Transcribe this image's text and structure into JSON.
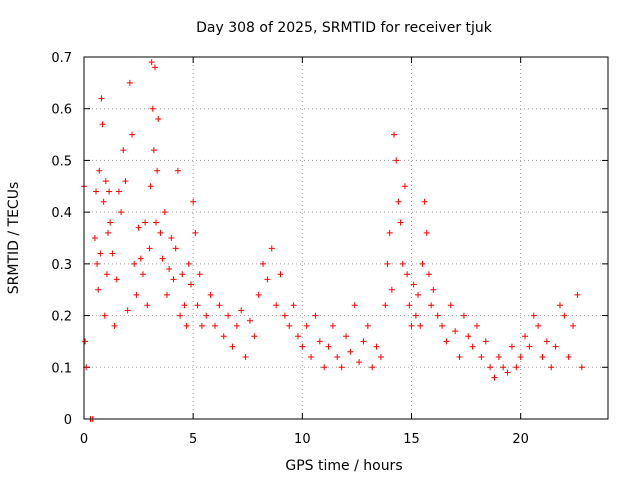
{
  "chart_data": {
    "type": "scatter",
    "title": "Day 308 of 2025, SRMTID for receiver tjuk",
    "xlabel": "GPS time / hours",
    "ylabel": "SRMTID / TECUs",
    "xlim": [
      0,
      24
    ],
    "ylim": [
      0,
      0.7
    ],
    "xticks": [
      0,
      5,
      10,
      15,
      20
    ],
    "xtick_labels": [
      "0",
      "5",
      "10",
      "15",
      "20"
    ],
    "yticks": [
      0,
      0.1,
      0.2,
      0.3,
      0.4,
      0.5,
      0.6,
      0.7
    ],
    "ytick_labels": [
      "0",
      "0.1",
      "0.2",
      "0.3",
      "0.4",
      "0.5",
      "0.6",
      "0.7"
    ],
    "grid": true,
    "marker": "plus",
    "color": "#ff0000",
    "series": [
      {
        "name": "SRMTID",
        "x": [
          0.0,
          0.05,
          0.1,
          0.3,
          0.4,
          0.5,
          0.55,
          0.6,
          0.65,
          0.7,
          0.75,
          0.8,
          0.85,
          0.9,
          0.95,
          1.0,
          1.05,
          1.1,
          1.15,
          1.2,
          1.3,
          1.4,
          1.5,
          1.6,
          1.7,
          1.8,
          1.9,
          2.0,
          2.1,
          2.2,
          2.3,
          2.4,
          2.5,
          2.6,
          2.7,
          2.8,
          2.9,
          3.0,
          3.05,
          3.1,
          3.15,
          3.2,
          3.25,
          3.3,
          3.35,
          3.4,
          3.5,
          3.6,
          3.7,
          3.8,
          3.9,
          4.0,
          4.1,
          4.2,
          4.3,
          4.4,
          4.5,
          4.6,
          4.7,
          4.8,
          4.9,
          5.0,
          5.1,
          5.2,
          5.3,
          5.4,
          5.6,
          5.8,
          6.0,
          6.2,
          6.4,
          6.6,
          6.8,
          7.0,
          7.2,
          7.4,
          7.6,
          7.8,
          8.0,
          8.2,
          8.4,
          8.6,
          8.8,
          9.0,
          9.2,
          9.4,
          9.6,
          9.8,
          10.0,
          10.2,
          10.4,
          10.6,
          10.8,
          11.0,
          11.2,
          11.4,
          11.6,
          11.8,
          12.0,
          12.2,
          12.4,
          12.6,
          12.8,
          13.0,
          13.2,
          13.4,
          13.6,
          13.8,
          13.9,
          14.0,
          14.1,
          14.2,
          14.3,
          14.4,
          14.5,
          14.6,
          14.7,
          14.8,
          14.9,
          15.0,
          15.1,
          15.2,
          15.3,
          15.4,
          15.5,
          15.6,
          15.7,
          15.8,
          15.9,
          16.0,
          16.2,
          16.4,
          16.6,
          16.8,
          17.0,
          17.2,
          17.4,
          17.6,
          17.8,
          18.0,
          18.2,
          18.4,
          18.6,
          18.8,
          19.0,
          19.2,
          19.4,
          19.6,
          19.8,
          20.0,
          20.2,
          20.4,
          20.6,
          20.8,
          21.0,
          21.2,
          21.4,
          21.6,
          21.8,
          22.0,
          22.2,
          22.4,
          22.6,
          22.8
        ],
        "y": [
          0.45,
          0.15,
          0.1,
          0.0,
          0.0,
          0.35,
          0.44,
          0.3,
          0.25,
          0.48,
          0.32,
          0.62,
          0.57,
          0.42,
          0.2,
          0.46,
          0.28,
          0.36,
          0.44,
          0.38,
          0.32,
          0.18,
          0.27,
          0.44,
          0.4,
          0.52,
          0.46,
          0.21,
          0.65,
          0.55,
          0.3,
          0.24,
          0.37,
          0.31,
          0.28,
          0.38,
          0.22,
          0.33,
          0.45,
          0.69,
          0.6,
          0.52,
          0.68,
          0.38,
          0.48,
          0.58,
          0.36,
          0.31,
          0.4,
          0.24,
          0.29,
          0.35,
          0.27,
          0.33,
          0.48,
          0.2,
          0.28,
          0.22,
          0.18,
          0.3,
          0.26,
          0.42,
          0.36,
          0.22,
          0.28,
          0.18,
          0.2,
          0.24,
          0.18,
          0.22,
          0.16,
          0.2,
          0.14,
          0.18,
          0.21,
          0.12,
          0.19,
          0.16,
          0.24,
          0.3,
          0.27,
          0.33,
          0.22,
          0.28,
          0.2,
          0.18,
          0.22,
          0.16,
          0.14,
          0.18,
          0.12,
          0.2,
          0.15,
          0.1,
          0.14,
          0.18,
          0.12,
          0.1,
          0.16,
          0.13,
          0.22,
          0.11,
          0.15,
          0.18,
          0.1,
          0.14,
          0.12,
          0.22,
          0.3,
          0.36,
          0.25,
          0.55,
          0.5,
          0.42,
          0.38,
          0.3,
          0.45,
          0.28,
          0.22,
          0.18,
          0.26,
          0.2,
          0.24,
          0.18,
          0.3,
          0.42,
          0.36,
          0.28,
          0.22,
          0.25,
          0.2,
          0.18,
          0.15,
          0.22,
          0.17,
          0.12,
          0.2,
          0.16,
          0.14,
          0.18,
          0.12,
          0.15,
          0.1,
          0.08,
          0.12,
          0.1,
          0.09,
          0.14,
          0.1,
          0.12,
          0.16,
          0.14,
          0.2,
          0.18,
          0.12,
          0.15,
          0.1,
          0.14,
          0.22,
          0.2,
          0.12,
          0.18,
          0.24,
          0.1
        ]
      }
    ]
  }
}
